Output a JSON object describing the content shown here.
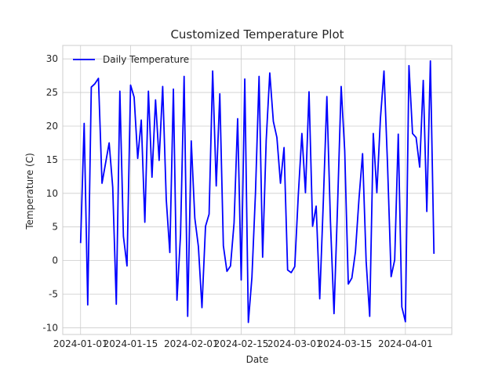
{
  "chart_data": {
    "type": "line",
    "title": "Customized Temperature Plot",
    "xlabel": "Date",
    "ylabel": "Temperature (C)",
    "x_start": "2024-01-01",
    "x_end": "2024-04-09",
    "xlim": [
      "2023-12-27",
      "2024-04-14"
    ],
    "ylim": [
      -11.0,
      32.0
    ],
    "x_ticks": [
      "2024-01-01",
      "2024-01-15",
      "2024-02-01",
      "2024-02-15",
      "2024-03-01",
      "2024-03-15",
      "2024-04-01"
    ],
    "y_ticks": [
      -10,
      -5,
      0,
      5,
      10,
      15,
      20,
      25,
      30
    ],
    "grid": true,
    "legend": "upper left",
    "series": [
      {
        "name": "Daily Temperature",
        "color": "#0000ff",
        "values": [
          2.6,
          20.4,
          -6.6,
          25.8,
          26.3,
          27.1,
          11.5,
          14.5,
          17.5,
          10.9,
          -6.5,
          25.2,
          3.6,
          -0.8,
          26.1,
          24.3,
          15.2,
          20.9,
          5.7,
          25.2,
          12.4,
          23.9,
          14.9,
          25.9,
          9.1,
          1.2,
          25.5,
          -5.9,
          3.9,
          27.4,
          -8.3,
          17.8,
          6.3,
          2.1,
          -7.0,
          5.1,
          6.9,
          28.2,
          11.1,
          24.8,
          2.2,
          -1.6,
          -0.8,
          5.6,
          21.1,
          -2.9,
          27.0,
          -9.2,
          -2.5,
          10.1,
          27.4,
          0.5,
          17.9,
          27.9,
          20.7,
          18.3,
          11.5,
          16.8,
          -1.4,
          -1.8,
          -0.9,
          9.8,
          18.9,
          10.1,
          25.1,
          5.1,
          8.1,
          -5.7,
          8.7,
          24.4,
          5.8,
          -7.9,
          8.3,
          25.9,
          16.3,
          -3.5,
          -2.6,
          1.3,
          9.2,
          15.9,
          -0.1,
          -8.3,
          18.9,
          10.1,
          21.1,
          28.2,
          14.2,
          -2.4,
          0.1,
          18.8,
          -6.9,
          -9.1,
          29.0,
          18.9,
          18.3,
          13.9,
          26.8,
          7.3,
          29.7,
          1.0
        ]
      }
    ]
  }
}
